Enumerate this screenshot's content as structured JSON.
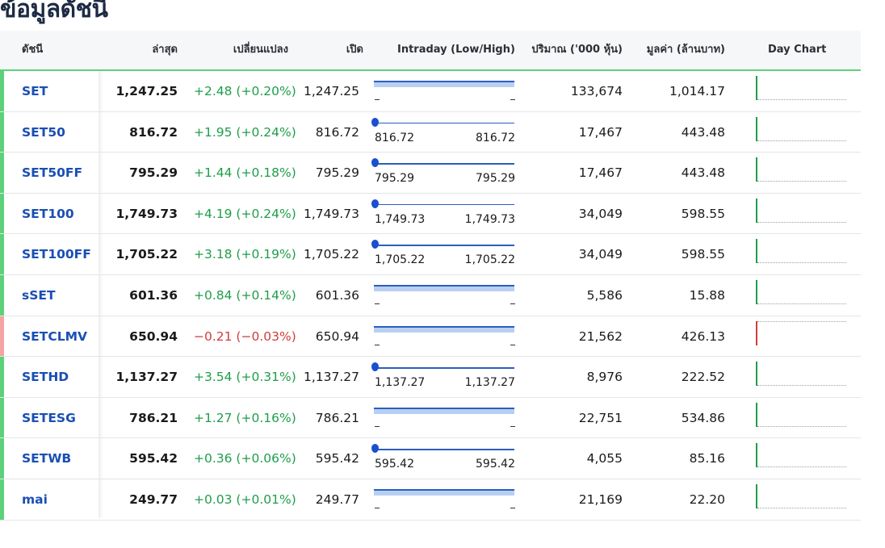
{
  "page": {
    "title": "ข้อมูลดัชนี"
  },
  "headers": {
    "name": "ดัชนี",
    "last": "ล่าสุด",
    "change": "เปลี่ยนแปลง",
    "open": "เปิด",
    "intraday": "Intraday (Low/High)",
    "volume": "ปริมาณ ('000 หุ้น)",
    "value": "มูลค่า (ล้านบาท)",
    "daychart": "Day Chart"
  },
  "colors": {
    "positive": "#1e9e4a",
    "negative": "#d43a3a",
    "positive_bar": "#5bd27a",
    "negative_bar": "#f4a3a3",
    "link": "#1a4fb4"
  },
  "rows": [
    {
      "name": "SET",
      "last": "1,247.25",
      "change": "+2.48 (+0.20%)",
      "trend": "up",
      "open": "1,247.25",
      "low": "-",
      "high": "-",
      "volume": "133,674",
      "value": "1,014.17"
    },
    {
      "name": "SET50",
      "last": "816.72",
      "change": "+1.95 (+0.24%)",
      "trend": "up",
      "open": "816.72",
      "low": "816.72",
      "high": "816.72",
      "volume": "17,467",
      "value": "443.48"
    },
    {
      "name": "SET50FF",
      "last": "795.29",
      "change": "+1.44 (+0.18%)",
      "trend": "up",
      "open": "795.29",
      "low": "795.29",
      "high": "795.29",
      "volume": "17,467",
      "value": "443.48"
    },
    {
      "name": "SET100",
      "last": "1,749.73",
      "change": "+4.19 (+0.24%)",
      "trend": "up",
      "open": "1,749.73",
      "low": "1,749.73",
      "high": "1,749.73",
      "volume": "34,049",
      "value": "598.55"
    },
    {
      "name": "SET100FF",
      "last": "1,705.22",
      "change": "+3.18 (+0.19%)",
      "trend": "up",
      "open": "1,705.22",
      "low": "1,705.22",
      "high": "1,705.22",
      "volume": "34,049",
      "value": "598.55"
    },
    {
      "name": "sSET",
      "last": "601.36",
      "change": "+0.84 (+0.14%)",
      "trend": "up",
      "open": "601.36",
      "low": "-",
      "high": "-",
      "volume": "5,586",
      "value": "15.88"
    },
    {
      "name": "SETCLMV",
      "last": "650.94",
      "change": "−0.21 (−0.03%)",
      "trend": "down",
      "open": "650.94",
      "low": "-",
      "high": "-",
      "volume": "21,562",
      "value": "426.13"
    },
    {
      "name": "SETHD",
      "last": "1,137.27",
      "change": "+3.54 (+0.31%)",
      "trend": "up",
      "open": "1,137.27",
      "low": "1,137.27",
      "high": "1,137.27",
      "volume": "8,976",
      "value": "222.52"
    },
    {
      "name": "SETESG",
      "last": "786.21",
      "change": "+1.27 (+0.16%)",
      "trend": "up",
      "open": "786.21",
      "low": "-",
      "high": "-",
      "volume": "22,751",
      "value": "534.86"
    },
    {
      "name": "SETWB",
      "last": "595.42",
      "change": "+0.36 (+0.06%)",
      "trend": "up",
      "open": "595.42",
      "low": "595.42",
      "high": "595.42",
      "volume": "4,055",
      "value": "85.16"
    },
    {
      "name": "mai",
      "last": "249.77",
      "change": "+0.03 (+0.01%)",
      "trend": "up",
      "open": "249.77",
      "low": "-",
      "high": "-",
      "volume": "21,169",
      "value": "22.20"
    }
  ]
}
